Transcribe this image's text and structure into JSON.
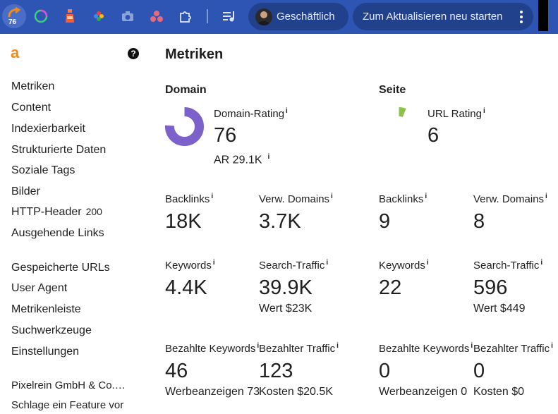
{
  "toolbar": {
    "extension_badge": "76",
    "profile_label": "Geschäftlich",
    "update_label": "Zum Aktualisieren neu starten",
    "extensions": [
      "ahrefs-icon",
      "circle-ring-icon",
      "bottle-icon",
      "colorful-flower-icon",
      "camera-icon",
      "three-dots-app-icon",
      "puzzle-icon",
      "media-queue-icon"
    ]
  },
  "sidebar": {
    "logo": "a",
    "help": "?",
    "items": [
      {
        "label": "Metriken"
      },
      {
        "label": "Content"
      },
      {
        "label": "Indexierbarkeit"
      },
      {
        "label": "Strukturierte Daten"
      },
      {
        "label": "Soziale Tags"
      },
      {
        "label": "Bilder"
      },
      {
        "label": "HTTP-Header",
        "badge": "200"
      },
      {
        "label": "Ausgehende Links"
      },
      {
        "label": "Gespeicherte URLs"
      },
      {
        "label": "User Agent"
      },
      {
        "label": "Metrikenleiste"
      },
      {
        "label": "Suchwerkzeuge"
      },
      {
        "label": "Einstellungen"
      }
    ],
    "footer": [
      "Pixelrein GmbH & Co.…",
      "Schlage ein Feature vor"
    ]
  },
  "main": {
    "title": "Metriken",
    "domain": {
      "heading": "Domain",
      "rating_label": "Domain-Rating",
      "rating_value": "76",
      "rating_fraction": 0.76,
      "ar": "AR 29.1K",
      "backlinks_label": "Backlinks",
      "backlinks_value": "18K",
      "refdomains_label": "Verw. Domains",
      "refdomains_value": "3.7K",
      "keywords_label": "Keywords",
      "keywords_value": "4.4K",
      "traffic_label": "Search-Traffic",
      "traffic_value": "39.9K",
      "traffic_worth": "Wert $23K",
      "paid_keywords_label": "Bezahlte Keywords",
      "paid_keywords_value": "46",
      "ads": "Werbeanzeigen 73",
      "paid_traffic_label": "Bezahlter Traffic",
      "paid_traffic_value": "123",
      "cost": "Kosten $20.5K"
    },
    "page": {
      "heading": "Seite",
      "rating_label": "URL Rating",
      "rating_value": "6",
      "rating_fraction": 0.06,
      "backlinks_label": "Backlinks",
      "backlinks_value": "9",
      "refdomains_label": "Verw. Domains",
      "refdomains_value": "8",
      "keywords_label": "Keywords",
      "keywords_value": "22",
      "traffic_label": "Search-Traffic",
      "traffic_value": "596",
      "traffic_worth": "Wert $449",
      "paid_keywords_label": "Bezahlte Keywords",
      "paid_keywords_value": "0",
      "ads": "Werbeanzeigen 0",
      "paid_traffic_label": "Bezahlter Traffic",
      "paid_traffic_value": "0",
      "cost": "Kosten $0"
    },
    "info_glyph": "i"
  },
  "colors": {
    "toolbar": "#2f55b4",
    "toolbar_button": "#22418c",
    "domain_ring": "#7b61c9",
    "url_ring": "#8bc34a",
    "logo": "#f08a1d"
  }
}
